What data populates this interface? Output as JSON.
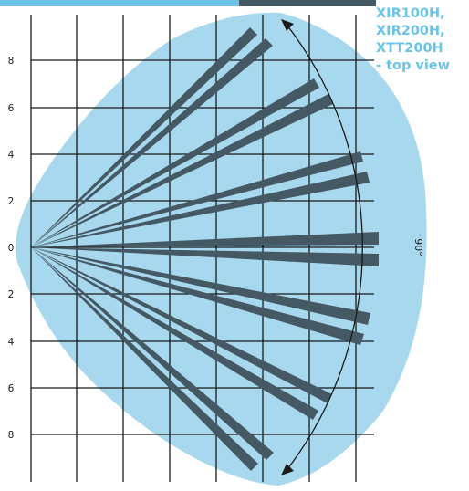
{
  "title_lines": [
    "XIR100H,",
    "XIR200H,",
    "XTT200H",
    "- top view"
  ],
  "y_tick_labels": [
    "8",
    "6",
    "4",
    "2",
    "0",
    "2",
    "4",
    "6",
    "8"
  ],
  "arc_label": "90°",
  "colors": {
    "coverage_area": "#a8d8ed",
    "beam": "#455965",
    "grid": "#1a1a1a",
    "title": "#6cc3e8",
    "top_bar_light": "#6cc3e8",
    "top_bar_dark": "#455965"
  }
}
